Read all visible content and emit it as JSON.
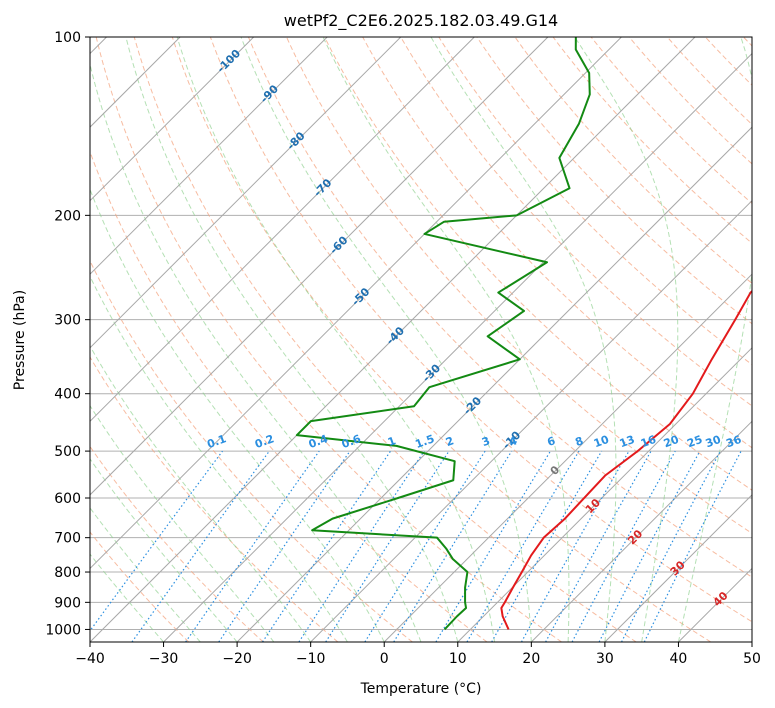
{
  "chart_data": {
    "type": "line",
    "subtype": "skew-t log-p diagram",
    "title": "wetPf2_C2E6.2025.182.03.49.G14",
    "xlabel": "Temperature (°C)",
    "ylabel": "Pressure (hPa)",
    "xlim": [
      -40,
      50
    ],
    "ylim": [
      1050,
      100
    ],
    "yscale": "log",
    "grid": true,
    "x_ticks": [
      -40,
      -30,
      -20,
      -10,
      0,
      10,
      20,
      30,
      40,
      50
    ],
    "x_tick_labels": [
      "−40",
      "−30",
      "−20",
      "−10",
      "0",
      "10",
      "20",
      "30",
      "40",
      "50"
    ],
    "y_ticks": [
      1000,
      900,
      800,
      700,
      600,
      500,
      400,
      300,
      200,
      100
    ],
    "y_tick_labels": [
      "1000",
      "900",
      "800",
      "700",
      "600",
      "500",
      "400",
      "300",
      "200",
      "100"
    ],
    "colors": {
      "temperature": "#e31a1c",
      "dewpoint": "#138a13",
      "isotherm_label": "#1f6fb0",
      "mixing_ratio": "#2b8fe0",
      "dry_adiabat": "#f4a582",
      "moist_adiabat": "#8ccf8c",
      "isotherm_line": "#a8a8a8",
      "theta_e": "#d8b88a",
      "pressure_grid": "#b0b0b0",
      "gray_label": "#777777",
      "red_label": "#d62728"
    },
    "series": [
      {
        "name": "",
        "role": "temperature",
        "points": [
          {
            "p": 1000,
            "t": 15.2
          },
          {
            "p": 950,
            "t": 12.6
          },
          {
            "p": 920,
            "t": 11.3
          },
          {
            "p": 900,
            "t": 11.0
          },
          {
            "p": 850,
            "t": 10.1
          },
          {
            "p": 800,
            "t": 9.2
          },
          {
            "p": 750,
            "t": 8.2
          },
          {
            "p": 700,
            "t": 7.5
          },
          {
            "p": 650,
            "t": 7.8
          },
          {
            "p": 600,
            "t": 7.6
          },
          {
            "p": 550,
            "t": 7.4
          },
          {
            "p": 500,
            "t": 8.5
          },
          {
            "p": 450,
            "t": 9.2
          },
          {
            "p": 400,
            "t": 8.2
          },
          {
            "p": 350,
            "t": 6.1
          },
          {
            "p": 300,
            "t": 3.9
          },
          {
            "p": 270,
            "t": 2.3
          },
          {
            "p": 240,
            "t": 2.5
          },
          {
            "p": 210,
            "t": 5.0
          },
          {
            "p": 180,
            "t": 8.2
          },
          {
            "p": 160,
            "t": 11.2
          },
          {
            "p": 150,
            "t": 13.4
          },
          {
            "p": 140,
            "t": 16.3
          },
          {
            "p": 125,
            "t": 19.6
          },
          {
            "p": 110,
            "t": 25.0
          },
          {
            "p": 100,
            "t": 30.1
          }
        ]
      },
      {
        "name": "",
        "role": "dewpoint",
        "points": [
          {
            "p": 1000,
            "t": 6.5
          },
          {
            "p": 950,
            "t": 6.4
          },
          {
            "p": 920,
            "t": 6.5
          },
          {
            "p": 900,
            "t": 5.6
          },
          {
            "p": 850,
            "t": 3.6
          },
          {
            "p": 800,
            "t": 1.8
          },
          {
            "p": 760,
            "t": -2.0
          },
          {
            "p": 730,
            "t": -4.3
          },
          {
            "p": 700,
            "t": -7.0
          },
          {
            "p": 680,
            "t": -25.0
          },
          {
            "p": 650,
            "t": -23.8
          },
          {
            "p": 600,
            "t": -17.7
          },
          {
            "p": 560,
            "t": -12.6
          },
          {
            "p": 520,
            "t": -15.0
          },
          {
            "p": 490,
            "t": -25.0
          },
          {
            "p": 470,
            "t": -40.0
          },
          {
            "p": 445,
            "t": -40.0
          },
          {
            "p": 420,
            "t": -28.0
          },
          {
            "p": 390,
            "t": -28.5
          },
          {
            "p": 350,
            "t": -20.0
          },
          {
            "p": 320,
            "t": -27.5
          },
          {
            "p": 290,
            "t": -26.0
          },
          {
            "p": 270,
            "t": -32.0
          },
          {
            "p": 240,
            "t": -29.5
          },
          {
            "p": 215,
            "t": -50.0
          },
          {
            "p": 205,
            "t": -49.0
          },
          {
            "p": 200,
            "t": -40.0
          },
          {
            "p": 180,
            "t": -36.5
          },
          {
            "p": 160,
            "t": -42.0
          },
          {
            "p": 140,
            "t": -44.0
          },
          {
            "p": 125,
            "t": -46.5
          },
          {
            "p": 115,
            "t": -49.5
          },
          {
            "p": 105,
            "t": -54.5
          },
          {
            "p": 100,
            "t": -56.2
          }
        ]
      }
    ],
    "isotherm_labels": [
      {
        "value": -100,
        "text": "-100",
        "p": 110
      },
      {
        "value": -90,
        "text": "-90",
        "p": 125
      },
      {
        "value": -80,
        "text": "-80",
        "p": 150
      },
      {
        "value": -70,
        "text": "-70",
        "p": 180
      },
      {
        "value": -60,
        "text": "-60",
        "p": 225
      },
      {
        "value": -50,
        "text": "-50",
        "p": 275
      },
      {
        "value": -40,
        "text": "-40",
        "p": 320
      },
      {
        "value": -30,
        "text": "-30",
        "p": 370
      },
      {
        "value": -20,
        "text": "-20",
        "p": 420
      },
      {
        "value": -10,
        "text": "-10",
        "p": 480
      },
      {
        "value": 0,
        "text": "0",
        "p": 540,
        "style": "gray"
      },
      {
        "value": 10,
        "text": "10",
        "p": 620,
        "style": "red"
      },
      {
        "value": 20,
        "text": "20",
        "p": 700,
        "style": "red"
      },
      {
        "value": 30,
        "text": "30",
        "p": 790,
        "style": "red"
      },
      {
        "value": 40,
        "text": "40",
        "p": 890,
        "style": "red"
      }
    ],
    "mixing_ratio_lines": [
      {
        "value": 0.1,
        "text": "0.1",
        "label_t": -23.3
      },
      {
        "value": 0.2,
        "text": "0.2",
        "label_t": -16.8
      },
      {
        "value": 0.4,
        "text": "0.4",
        "label_t": -9.5
      },
      {
        "value": 0.6,
        "text": "0.6",
        "label_t": -5.0
      },
      {
        "value": 1,
        "text": "1",
        "label_t": 0.5
      },
      {
        "value": 1.5,
        "text": "1.5",
        "label_t": 5.0
      },
      {
        "value": 2,
        "text": "2",
        "label_t": 8.4
      },
      {
        "value": 3,
        "text": "3",
        "label_t": 13.3
      },
      {
        "value": 4,
        "text": "4",
        "label_t": 17.0
      },
      {
        "value": 6,
        "text": "6",
        "label_t": 22.2
      },
      {
        "value": 8,
        "text": "8",
        "label_t": 26.0
      },
      {
        "value": 10,
        "text": "10",
        "label_t": 29.0
      },
      {
        "value": 13,
        "text": "13",
        "label_t": 32.5
      },
      {
        "value": 16,
        "text": "16",
        "label_t": 35.4
      },
      {
        "value": 20,
        "text": "20",
        "label_t": 38.5
      },
      {
        "value": 25,
        "text": "25",
        "label_t": 41.7
      },
      {
        "value": 30,
        "text": "30",
        "label_t": 44.2
      },
      {
        "value": 36,
        "text": "36",
        "label_t": 47.0
      }
    ],
    "mixing_ratio_label_pressure": 500
  }
}
